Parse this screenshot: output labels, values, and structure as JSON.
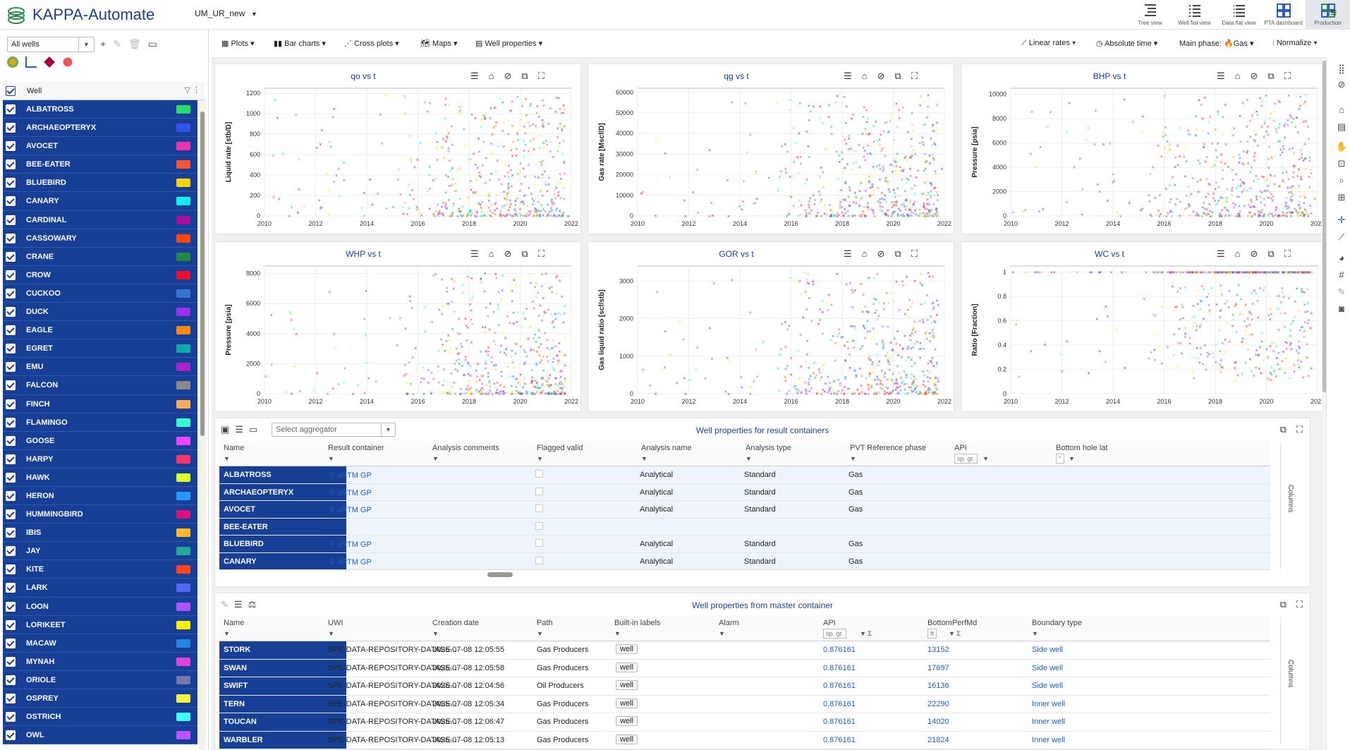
{
  "app": {
    "title": "KAPPA-Automate",
    "project": "UM_UR_new"
  },
  "top_views": [
    "Tree view",
    "Well flat view",
    "Data flat view",
    "PTA dashboard",
    "Production"
  ],
  "sidebar": {
    "filter_value": "All wells",
    "column_label": "Well",
    "wells": [
      {
        "name": "ALBATROSS",
        "color": "#22dd66"
      },
      {
        "name": "ARCHAEOPTERYX",
        "color": "#3355ee"
      },
      {
        "name": "AVOCET",
        "color": "#ee33aa"
      },
      {
        "name": "BEE-EATER",
        "color": "#ff5533"
      },
      {
        "name": "BLUEBIRD",
        "color": "#ffd400"
      },
      {
        "name": "CANARY",
        "color": "#11eeee"
      },
      {
        "name": "CARDINAL",
        "color": "#aa1199"
      },
      {
        "name": "CASSOWARY",
        "color": "#ff4411"
      },
      {
        "name": "CRANE",
        "color": "#228844"
      },
      {
        "name": "CROW",
        "color": "#ee1133"
      },
      {
        "name": "CUCKOO",
        "color": "#3377cc"
      },
      {
        "name": "DUCK",
        "color": "#9933ee"
      },
      {
        "name": "EAGLE",
        "color": "#ff8811"
      },
      {
        "name": "EGRET",
        "color": "#11aaaa"
      },
      {
        "name": "EMU",
        "color": "#aa22cc"
      },
      {
        "name": "FALCON",
        "color": "#888888"
      },
      {
        "name": "FINCH",
        "color": "#ffaa55"
      },
      {
        "name": "FLAMINGO",
        "color": "#33ffcc"
      },
      {
        "name": "GOOSE",
        "color": "#ee44ff"
      },
      {
        "name": "HARPY",
        "color": "#ff3366"
      },
      {
        "name": "HAWK",
        "color": "#ddff22"
      },
      {
        "name": "HERON",
        "color": "#2299ff"
      },
      {
        "name": "HUMMINGBIRD",
        "color": "#dd1177"
      },
      {
        "name": "IBIS",
        "color": "#ffbb22"
      },
      {
        "name": "JAY",
        "color": "#22aa99"
      },
      {
        "name": "KITE",
        "color": "#ff4422"
      },
      {
        "name": "LARK",
        "color": "#5566ee"
      },
      {
        "name": "LOON",
        "color": "#aa55ff"
      },
      {
        "name": "LORIKEET",
        "color": "#ffee00"
      },
      {
        "name": "MACAW",
        "color": "#2288dd"
      },
      {
        "name": "MYNAH",
        "color": "#dd44dd"
      },
      {
        "name": "ORIOLE",
        "color": "#7777aa"
      },
      {
        "name": "OSPREY",
        "color": "#ffee44"
      },
      {
        "name": "OSTRICH",
        "color": "#44ffff"
      },
      {
        "name": "OWL",
        "color": "#bb55ff"
      }
    ]
  },
  "toolbar": {
    "plots": "Plots",
    "bar_charts": "Bar charts",
    "cross_plots": "Cross plots",
    "maps": "Maps",
    "well_properties": "Well properties",
    "linear_rates": "Linear rates",
    "absolute_time": "Absolute time",
    "main_phase_label": "Main phase:",
    "main_phase_value": "Gas",
    "normalize": "Normalize"
  },
  "chart_data": [
    {
      "type": "scatter",
      "title": "qo vs t",
      "ylabel": "Liquid rate [stb/D]",
      "xlabel": "",
      "x_ticks": [
        "2010",
        "2012",
        "2014",
        "2016",
        "2018",
        "2020",
        "2022"
      ],
      "y_ticks": [
        "0",
        "200",
        "400",
        "600",
        "800",
        "1000",
        "1200"
      ],
      "xlim": [
        2010,
        2022
      ],
      "ylim": [
        0,
        1250
      ]
    },
    {
      "type": "scatter",
      "title": "qg vs t",
      "ylabel": "Gas rate [Mscf/D]",
      "xlabel": "",
      "x_ticks": [
        "2010",
        "2012",
        "2014",
        "2016",
        "2018",
        "2020",
        "2022"
      ],
      "y_ticks": [
        "0",
        "10000",
        "20000",
        "30000",
        "40000",
        "50000",
        "60000"
      ],
      "xlim": [
        2010,
        2022
      ],
      "ylim": [
        0,
        62000
      ]
    },
    {
      "type": "scatter",
      "title": "BHP vs t",
      "ylabel": "Pressure [psia]",
      "xlabel": "",
      "x_ticks": [
        "2010",
        "2012",
        "2014",
        "2016",
        "2018",
        "2020",
        "2022"
      ],
      "y_ticks": [
        "0",
        "2000",
        "4000",
        "6000",
        "8000",
        "10000"
      ],
      "xlim": [
        2010,
        2022
      ],
      "ylim": [
        0,
        10500
      ]
    },
    {
      "type": "scatter",
      "title": "WHP vs t",
      "ylabel": "Pressure [psia]",
      "xlabel": "",
      "x_ticks": [
        "2010",
        "2012",
        "2014",
        "2016",
        "2018",
        "2020",
        "2022"
      ],
      "y_ticks": [
        "0",
        "2000",
        "4000",
        "6000",
        "8000"
      ],
      "xlim": [
        2010,
        2022
      ],
      "ylim": [
        0,
        8500
      ]
    },
    {
      "type": "scatter",
      "title": "GOR vs t",
      "ylabel": "Gas liquid ratio [scf/stb]",
      "xlabel": "",
      "x_ticks": [
        "2010",
        "2012",
        "2014",
        "2016",
        "2018",
        "2020",
        "2022"
      ],
      "y_ticks": [
        "0",
        "1000",
        "2000",
        "3000"
      ],
      "xlim": [
        2010,
        2022
      ],
      "ylim": [
        0,
        3400
      ]
    },
    {
      "type": "scatter",
      "title": "WC vs t",
      "ylabel": "Ratio [Fraction]",
      "xlabel": "",
      "x_ticks": [
        "2010",
        "2012",
        "2014",
        "2016",
        "2018",
        "2020",
        "2022"
      ],
      "y_ticks": [
        "0",
        "0.2",
        "0.4",
        "0.6",
        "0.8",
        "1"
      ],
      "xlim": [
        2010,
        2022
      ],
      "ylim": [
        0,
        1.05
      ]
    }
  ],
  "result_panel": {
    "title": "Well properties for result containers",
    "aggregator_placeholder": "Select aggregator",
    "columns_label": "Columns",
    "headers": [
      "Name",
      "Result container",
      "Analysis comments",
      "Flagged valid",
      "Analysis name",
      "Analysis type",
      "PVT Reference phase",
      "API",
      "Bottom hole lat"
    ],
    "api_unit": "sp. gr.",
    "bhl_unit": "°",
    "rows": [
      {
        "name": "ALBATROSS",
        "container": "aRTM GP",
        "analysis": "Analytical",
        "type": "Standard",
        "phase": "Gas"
      },
      {
        "name": "ARCHAEOPTERYX",
        "container": "aRTM GP",
        "analysis": "Analytical",
        "type": "Standard",
        "phase": "Gas"
      },
      {
        "name": "AVOCET",
        "container": "aRTM GP",
        "analysis": "Analytical",
        "type": "Standard",
        "phase": "Gas"
      },
      {
        "name": "BEE-EATER",
        "container": "",
        "analysis": "",
        "type": "",
        "phase": ""
      },
      {
        "name": "BLUEBIRD",
        "container": "aRTM GP",
        "analysis": "Analytical",
        "type": "Standard",
        "phase": "Gas"
      },
      {
        "name": "CANARY",
        "container": "aRTM GP",
        "analysis": "Analytical",
        "type": "Standard",
        "phase": "Gas"
      }
    ]
  },
  "master_panel": {
    "title": "Well properties from master container",
    "columns_label": "Columns",
    "headers": [
      "Name",
      "UWI",
      "Creation date",
      "Path",
      "Built-in labels",
      "Alarm",
      "API",
      "BottomPerfMd",
      "Boundary type"
    ],
    "api_unit": "sp. gr.",
    "md_unit": "ft",
    "rows": [
      {
        "name": "STORK",
        "uwi": "SPE-DATA-REPOSITORY-DATASE...",
        "date": "2025-07-08 12:05:55",
        "path": "Gas Producers",
        "label": "well",
        "api": "0.876161",
        "md": "13152",
        "boundary": "Side well"
      },
      {
        "name": "SWAN",
        "uwi": "SPE-DATA-REPOSITORY-DATASE...",
        "date": "2025-07-08 12:05:58",
        "path": "Gas Producers",
        "label": "well",
        "api": "0.876161",
        "md": "17697",
        "boundary": "Side well"
      },
      {
        "name": "SWIFT",
        "uwi": "SPE-DATA-REPOSITORY-DATASE...",
        "date": "2025-07-08 12:04:56",
        "path": "Oil Producers",
        "label": "well",
        "api": "0.876161",
        "md": "16136",
        "boundary": "Side well"
      },
      {
        "name": "TERN",
        "uwi": "SPE-DATA-REPOSITORY-DATASE...",
        "date": "2025-07-08 12:05:34",
        "path": "Gas Producers",
        "label": "well",
        "api": "0.876161",
        "md": "22290",
        "boundary": "Inner well"
      },
      {
        "name": "TOUCAN",
        "uwi": "SPE-DATA-REPOSITORY-DATASE...",
        "date": "2025-07-08 12:06:47",
        "path": "Gas Producers",
        "label": "well",
        "api": "0.876161",
        "md": "14020",
        "boundary": "Inner well"
      },
      {
        "name": "WARBLER",
        "uwi": "SPE-DATA-REPOSITORY-DATASE...",
        "date": "2025-07-08 12:05:13",
        "path": "Gas Producers",
        "label": "well",
        "api": "0.876161",
        "md": "21824",
        "boundary": "Inner well"
      }
    ]
  }
}
